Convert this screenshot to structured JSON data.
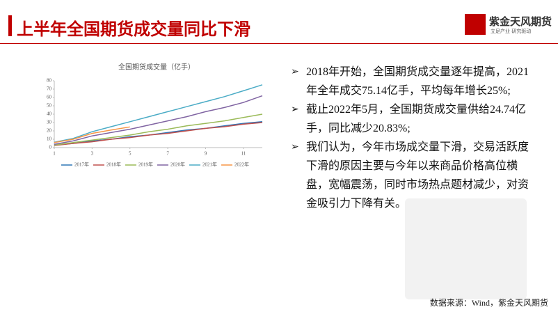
{
  "header": {
    "title": "上半年全国期货成交量同比下滑",
    "logo": "紫金天风期货",
    "logo_tagline": "立足产业 研究驱动"
  },
  "chart_data": {
    "type": "line",
    "title": "全国期货成交量（亿手）",
    "x": [
      1,
      2,
      3,
      4,
      5,
      6,
      7,
      8,
      9,
      10,
      11,
      12
    ],
    "xlim": [
      1,
      12
    ],
    "xticks": [
      1,
      3,
      5,
      7,
      9,
      11
    ],
    "ylim": [
      0,
      80
    ],
    "yticks": [
      0,
      10,
      20,
      30,
      40,
      50,
      60,
      70,
      80
    ],
    "grid": false,
    "legend": "bottom",
    "series": [
      {
        "name": "2017年",
        "color": "#2e75b6",
        "values": [
          3,
          5,
          8,
          10,
          13,
          15,
          18,
          21,
          23,
          26,
          29,
          31
        ]
      },
      {
        "name": "2018年",
        "color": "#c0504d",
        "values": [
          2.5,
          5,
          7,
          10,
          12,
          15,
          17,
          20,
          23,
          25,
          28,
          30
        ]
      },
      {
        "name": "2019年",
        "color": "#9bbb59",
        "values": [
          3,
          6,
          9,
          12,
          15,
          19,
          22,
          26,
          29,
          32,
          36,
          40
        ]
      },
      {
        "name": "2020年",
        "color": "#8064a2",
        "values": [
          4,
          8,
          14,
          18,
          22,
          27,
          32,
          37,
          43,
          48,
          54,
          62
        ]
      },
      {
        "name": "2021年",
        "color": "#4bacc6",
        "values": [
          6.5,
          11,
          19,
          25,
          31,
          37,
          43,
          49,
          55,
          61,
          68,
          75.14
        ]
      },
      {
        "name": "2022年",
        "color": "#f79646",
        "values": [
          6,
          10,
          17,
          21,
          24.74,
          null,
          null,
          null,
          null,
          null,
          null,
          null
        ]
      }
    ]
  },
  "bullets": [
    "2018年开始，全国期货成交量逐年提高，2021年全年成交75.14亿手，平均每年增长25%;",
    "截止2022年5月，全国期货成交量供给24.74亿手，同比减少20.83%;",
    "我们认为，今年市场成交量下滑，交易活跃度下滑的原因主要与今年以来商品价格高位横盘，宽幅震荡，同时市场热点题材减少，对资金吸引力下降有关。"
  ],
  "source": "数据来源：Wind，紫金天风期货"
}
